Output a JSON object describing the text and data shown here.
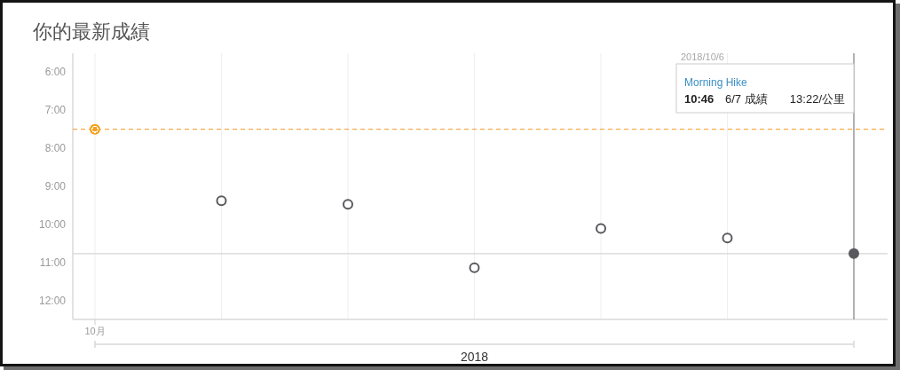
{
  "chart_data": {
    "type": "scatter",
    "title": "你的最新成績",
    "xlabel": "2018",
    "categories": [
      "10月",
      null,
      null,
      null,
      null,
      null,
      null
    ],
    "series": [
      {
        "values": [
          7.5,
          9.38,
          9.47,
          11.14,
          10.11,
          10.36,
          10.77
        ],
        "colors": [
          "#f5a01c",
          "#5a5a5e",
          "#5a5a5e",
          "#5a5a5e",
          "#5a5a5e",
          "#5a5a5e",
          "#5a5a5e"
        ]
      }
    ],
    "ylim": [
      12.5,
      5.5
    ],
    "yticks": [
      {
        "value": 6,
        "label": "6:00"
      },
      {
        "value": 7,
        "label": "7:00"
      },
      {
        "value": 8,
        "label": "8:00"
      },
      {
        "value": 9,
        "label": "9:00"
      },
      {
        "value": 10,
        "label": "10:00"
      },
      {
        "value": 11,
        "label": "11:00"
      },
      {
        "value": 12,
        "label": "12:00"
      }
    ],
    "grid": "x",
    "marker": "circle",
    "ref_lines": [
      {
        "axis": "y",
        "value": 7.5,
        "color": "#f7a94a",
        "line_style": "dashed"
      },
      {
        "axis": "y",
        "value": 10.77,
        "color": "#d6d6d6",
        "line_style": "solid"
      }
    ],
    "annotations": [
      "2018/10/6",
      "Morning Hike",
      "10:46",
      "6/7 成績",
      "13:22/公里"
    ]
  }
}
